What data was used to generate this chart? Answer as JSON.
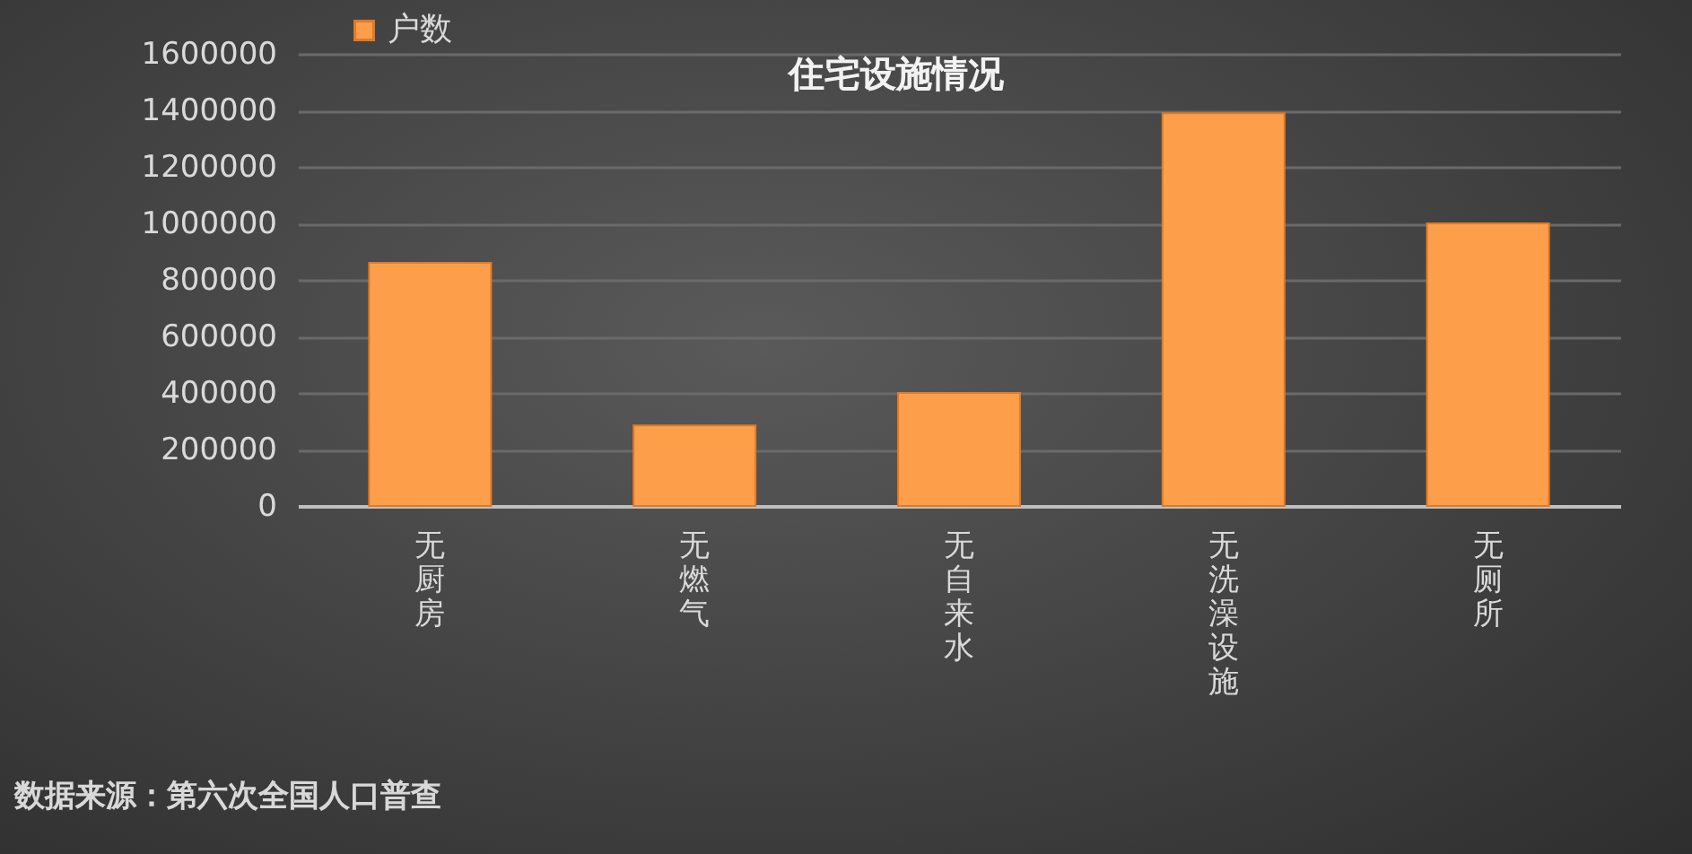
{
  "chart_data": {
    "type": "bar",
    "title": "住宅设施情况",
    "categories": [
      "无厨房",
      "无燃气",
      "无自来水",
      "无洗澡设施",
      "无厕所"
    ],
    "series": [
      {
        "name": "户数",
        "color": "#fd9e4b",
        "values": [
          860000,
          285000,
          400000,
          1390000,
          1000000
        ]
      }
    ],
    "ylim": [
      0,
      1600000
    ],
    "yticks": [
      0,
      200000,
      400000,
      600000,
      800000,
      1000000,
      1200000,
      1400000,
      1600000
    ],
    "grid": "y",
    "legend": "top left",
    "annotations": [
      "数据来源：第六次全国人口普查"
    ]
  }
}
